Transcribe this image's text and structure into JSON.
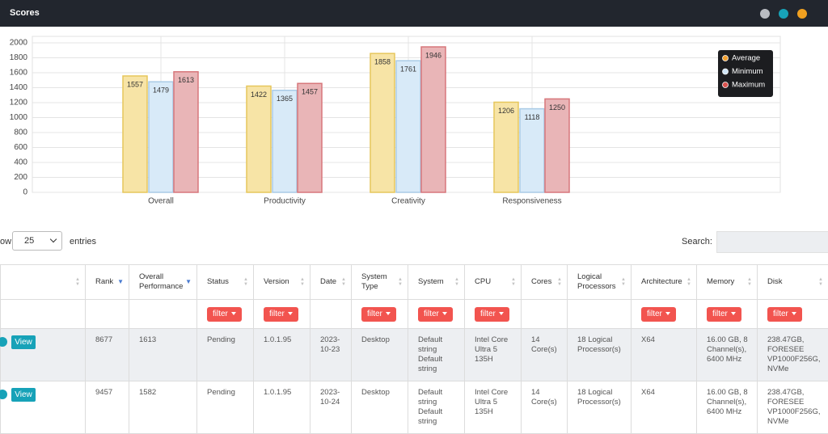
{
  "header": {
    "title": "Scores"
  },
  "chart_data": {
    "type": "bar",
    "categories": [
      "Overall",
      "Productivity",
      "Creativity",
      "Responsiveness"
    ],
    "series": [
      {
        "name": "Average",
        "color": "#f7e4a6",
        "border_color": "#e6c65c",
        "legend_color": "#f0a030",
        "values": [
          1557,
          1422,
          1858,
          1206
        ]
      },
      {
        "name": "Minimum",
        "color": "#d8eaf8",
        "border_color": "#aacbe6",
        "legend_color": "#cfe6f7",
        "values": [
          1479,
          1365,
          1761,
          1118
        ]
      },
      {
        "name": "Maximum",
        "color": "#e9b5b7",
        "border_color": "#d7777b",
        "legend_color": "#d9534f",
        "values": [
          1613,
          1457,
          1946,
          1250
        ]
      }
    ],
    "ylim": [
      0,
      2000
    ],
    "yticks": [
      0,
      200,
      400,
      600,
      800,
      1000,
      1200,
      1400,
      1600,
      1800,
      2000
    ],
    "grid": true,
    "legend": "top-right"
  },
  "controls": {
    "show_label": "ow",
    "page_size": "25",
    "entries_label": "entries",
    "search_label": "Search:"
  },
  "table": {
    "filter_label": "filter",
    "view_label": "View",
    "columns": [
      {
        "title": "Rank",
        "filter": false,
        "sorted": true
      },
      {
        "title": "Overall Performance",
        "filter": false,
        "sorted": true
      },
      {
        "title": "Status",
        "filter": true,
        "sorted": false
      },
      {
        "title": "Version",
        "filter": true,
        "sorted": false
      },
      {
        "title": "Date",
        "filter": false,
        "sorted": false
      },
      {
        "title": "System Type",
        "filter": true,
        "sorted": false
      },
      {
        "title": "System",
        "filter": true,
        "sorted": false
      },
      {
        "title": "CPU",
        "filter": true,
        "sorted": false
      },
      {
        "title": "Cores",
        "filter": false,
        "sorted": false
      },
      {
        "title": "Logical Processors",
        "filter": false,
        "sorted": false
      },
      {
        "title": "Architecture",
        "filter": true,
        "sorted": false
      },
      {
        "title": "Memory",
        "filter": true,
        "sorted": false
      },
      {
        "title": "Disk",
        "filter": true,
        "sorted": false
      }
    ],
    "rows": [
      [
        "8677",
        "1613",
        "Pending",
        "1.0.1.95",
        "2023-10-23",
        "Desktop",
        "Default string Default string",
        "Intel Core Ultra 5 135H",
        "14 Core(s)",
        "18 Logical Processor(s)",
        "X64",
        "16.00 GB, 8 Channel(s), 6400 MHz",
        "238.47GB, FORESEE VP1000F256G, NVMe"
      ],
      [
        "9457",
        "1582",
        "Pending",
        "1.0.1.95",
        "2023-10-24",
        "Desktop",
        "Default string Default string",
        "Intel Core Ultra 5 135H",
        "14 Core(s)",
        "18 Logical Processor(s)",
        "X64",
        "16.00 GB, 8 Channel(s), 6400 MHz",
        "238.47GB, FORESEE VP1000F256G, NVMe"
      ]
    ]
  }
}
